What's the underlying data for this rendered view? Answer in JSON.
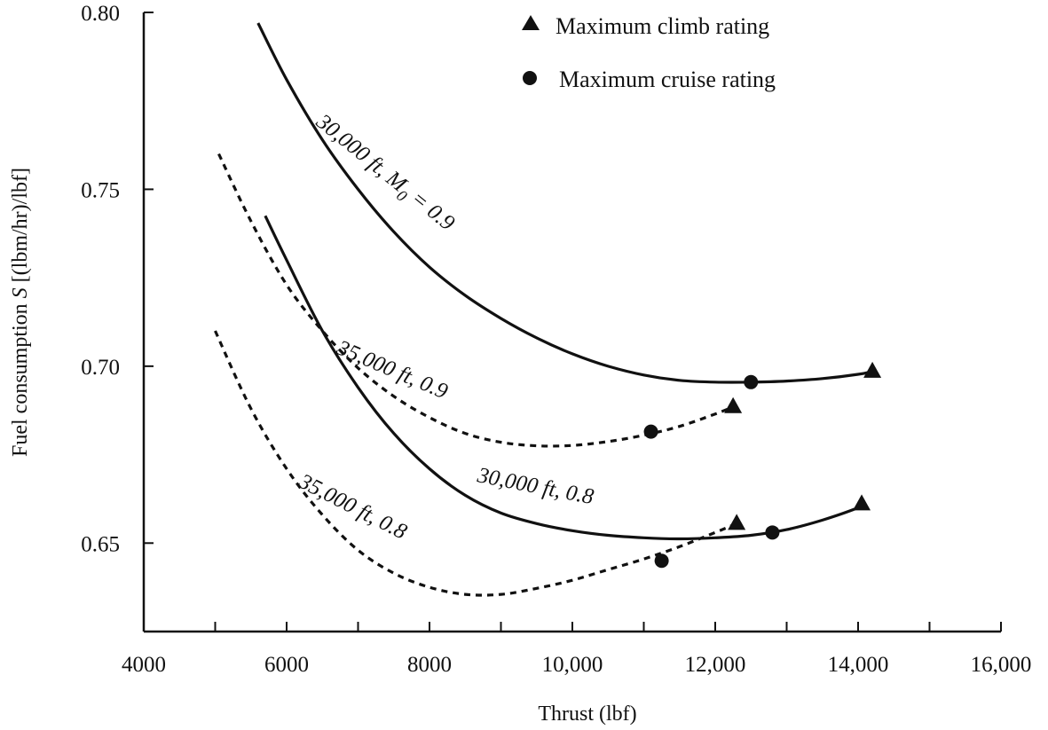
{
  "chart_data": {
    "type": "line",
    "xlabel": "Thrust (lbf)",
    "ylabel": "Fuel consumption S [(lbm/hr)/lbf]",
    "xlim": [
      4000,
      16000
    ],
    "ylim": [
      0.625,
      0.8
    ],
    "x_ticks": [
      4000,
      5000,
      6000,
      7000,
      8000,
      9000,
      10000,
      11000,
      12000,
      13000,
      14000,
      15000,
      16000
    ],
    "x_tick_labels": [
      {
        "value": 4000,
        "label": "4000"
      },
      {
        "value": 6000,
        "label": "6000"
      },
      {
        "value": 8000,
        "label": "8000"
      },
      {
        "value": 10000,
        "label": "10,000"
      },
      {
        "value": 12000,
        "label": "12,000"
      },
      {
        "value": 14000,
        "label": "14,000"
      },
      {
        "value": 16000,
        "label": "16,000"
      }
    ],
    "y_ticks": [
      0.65,
      0.7,
      0.75,
      0.8
    ],
    "y_tick_labels": [
      "0.65",
      "0.70",
      "0.75",
      "0.80"
    ],
    "grid": false,
    "legend": {
      "placement": "top-right",
      "entries": [
        {
          "marker": "triangle",
          "label": "Maximum climb rating"
        },
        {
          "marker": "circle",
          "label": "Maximum cruise rating"
        }
      ]
    },
    "series": [
      {
        "name": "30,000 ft, M0 = 0.9",
        "label_parts": [
          "30,000 ft, ",
          "M",
          "0",
          " = 0.9"
        ],
        "style": "solid",
        "x": [
          5600,
          6000,
          6500,
          7000,
          7500,
          8000,
          8500,
          9000,
          9500,
          10000,
          10500,
          11000,
          11500,
          12000,
          12500,
          13000,
          13500,
          14000,
          14200
        ],
        "y": [
          0.797,
          0.781,
          0.764,
          0.75,
          0.738,
          0.728,
          0.72,
          0.7135,
          0.708,
          0.7035,
          0.7,
          0.6975,
          0.696,
          0.6955,
          0.6955,
          0.6958,
          0.6965,
          0.6977,
          0.6985
        ],
        "climb_point": {
          "x": 14200,
          "y": 0.6985
        },
        "cruise_point": {
          "x": 12500,
          "y": 0.6955
        }
      },
      {
        "name": "35,000 ft, 0.9",
        "label_parts": [
          "35,000 ft, 0.9"
        ],
        "style": "dashed",
        "x": [
          5050,
          5500,
          6000,
          6500,
          7000,
          7500,
          8000,
          8500,
          9000,
          9500,
          10000,
          10500,
          11000,
          11500,
          12000,
          12250
        ],
        "y": [
          0.76,
          0.741,
          0.723,
          0.71,
          0.6995,
          0.6915,
          0.6855,
          0.681,
          0.6785,
          0.6775,
          0.6776,
          0.6787,
          0.6805,
          0.683,
          0.6865,
          0.6885
        ],
        "climb_point": {
          "x": 12250,
          "y": 0.6885
        },
        "cruise_point": {
          "x": 11100,
          "y": 0.6815
        }
      },
      {
        "name": "30,000 ft, 0.8",
        "label_parts": [
          "30,000 ft, 0.8"
        ],
        "style": "solid",
        "x": [
          5700,
          6000,
          6500,
          7000,
          7500,
          8000,
          8500,
          9000,
          9500,
          10000,
          10500,
          11000,
          11500,
          12000,
          12500,
          13000,
          13500,
          14000,
          14050
        ],
        "y": [
          0.7425,
          0.73,
          0.71,
          0.694,
          0.681,
          0.671,
          0.6635,
          0.6585,
          0.6555,
          0.6535,
          0.6522,
          0.6515,
          0.6512,
          0.6515,
          0.6522,
          0.6538,
          0.6565,
          0.66,
          0.661
        ],
        "climb_point": {
          "x": 14050,
          "y": 0.661
        },
        "cruise_point": {
          "x": 12800,
          "y": 0.653
        }
      },
      {
        "name": "35,000 ft, 0.8",
        "label_parts": [
          "35,000 ft, 0.8"
        ],
        "style": "dashed",
        "x": [
          5000,
          5500,
          6000,
          6500,
          7000,
          7500,
          8000,
          8500,
          9000,
          9500,
          10000,
          10500,
          11000,
          11500,
          12000,
          12300
        ],
        "y": [
          0.71,
          0.688,
          0.671,
          0.658,
          0.648,
          0.6415,
          0.6375,
          0.6355,
          0.6355,
          0.6372,
          0.6395,
          0.6425,
          0.6455,
          0.649,
          0.653,
          0.6555
        ],
        "climb_point": {
          "x": 12300,
          "y": 0.6555
        },
        "cruise_point": {
          "x": 11250,
          "y": 0.645
        }
      }
    ]
  }
}
